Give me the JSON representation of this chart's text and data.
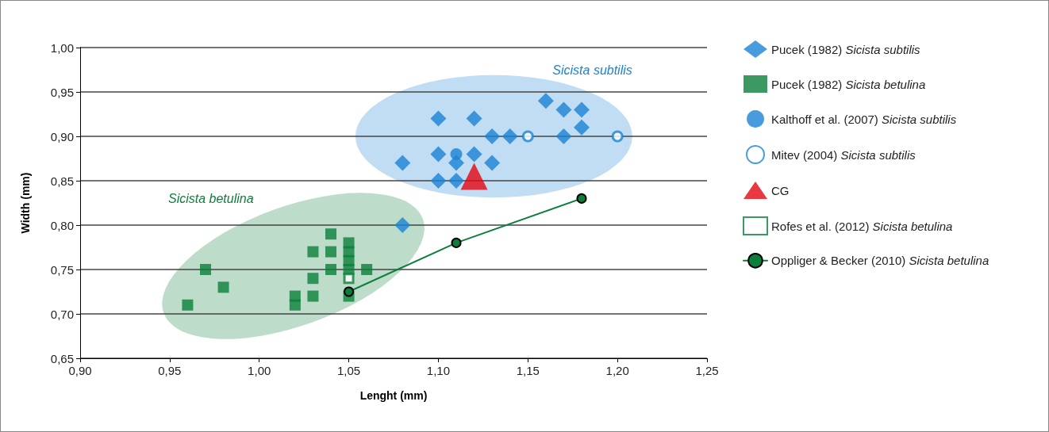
{
  "chart_data": {
    "type": "scatter",
    "xlabel": "Lenght (mm)",
    "ylabel": "Width (mm)",
    "xlim": [
      0.9,
      1.25
    ],
    "ylim": [
      0.65,
      1.0
    ],
    "xticks": [
      {
        "value": 0.9,
        "label": "0,90"
      },
      {
        "value": 0.95,
        "label": "0,95"
      },
      {
        "value": 1.0,
        "label": "1,00"
      },
      {
        "value": 1.05,
        "label": "1,05"
      },
      {
        "value": 1.1,
        "label": "1,10"
      },
      {
        "value": 1.15,
        "label": "1,15"
      },
      {
        "value": 1.2,
        "label": "1,20"
      },
      {
        "value": 1.25,
        "label": "1,25"
      }
    ],
    "yticks": [
      {
        "value": 0.65,
        "label": "0,65"
      },
      {
        "value": 0.7,
        "label": "0,70"
      },
      {
        "value": 0.75,
        "label": "0,75"
      },
      {
        "value": 0.8,
        "label": "0,80"
      },
      {
        "value": 0.85,
        "label": "0,85"
      },
      {
        "value": 0.9,
        "label": "0,90"
      },
      {
        "value": 0.95,
        "label": "0,95"
      },
      {
        "value": 1.0,
        "label": "1,00"
      }
    ],
    "grid": "y",
    "legend": "right",
    "annotations": [
      "Sicista subtilis",
      "Sicista betulina"
    ],
    "series": [
      {
        "name": "Pucek (1982) Sicista subtilis",
        "marker": "diamond",
        "color": "#1a83d4",
        "x": [
          1.1,
          1.12,
          1.13,
          1.14,
          1.16,
          1.17,
          1.18,
          1.18,
          1.17,
          1.1,
          1.12,
          1.08,
          1.11,
          1.13,
          1.1,
          1.11,
          1.08
        ],
        "values": [
          0.92,
          0.92,
          0.9,
          0.9,
          0.94,
          0.93,
          0.93,
          0.91,
          0.9,
          0.88,
          0.88,
          0.87,
          0.87,
          0.87,
          0.85,
          0.85,
          0.8
        ]
      },
      {
        "name": "Pucek (1982) Sicista betulina",
        "marker": "square",
        "color": "#0b7f3a",
        "x": [
          0.97,
          0.98,
          0.96,
          1.02,
          1.02,
          1.03,
          1.03,
          1.03,
          1.04,
          1.04,
          1.04,
          1.05,
          1.05,
          1.05,
          1.05,
          1.05,
          1.06
        ],
        "values": [
          0.75,
          0.73,
          0.71,
          0.72,
          0.71,
          0.77,
          0.74,
          0.72,
          0.79,
          0.77,
          0.75,
          0.78,
          0.77,
          0.76,
          0.75,
          0.72,
          0.75
        ]
      },
      {
        "name": "Kalthoff et al. (2007) Sicista subtilis",
        "marker": "circle",
        "color": "#1a83d4",
        "x": [
          1.11
        ],
        "values": [
          0.88
        ]
      },
      {
        "name": "Mitev (2004) Sicista subtilis",
        "marker": "circle",
        "color": "#1a83d4",
        "x": [
          1.15,
          1.2
        ],
        "values": [
          0.9,
          0.9
        ]
      },
      {
        "name": "CG",
        "marker": "triangle",
        "color": "#e30613",
        "x": [
          1.12
        ],
        "values": [
          0.855
        ]
      },
      {
        "name": "Rofes et al. (2012) Sicista betulina",
        "marker": "square",
        "color": "#0b7f3a",
        "x": [
          1.05
        ],
        "values": [
          0.74
        ]
      },
      {
        "name": "Oppliger & Becker (2010) Sicista betulina",
        "type": "line",
        "marker": "circle",
        "color": "#0b7f3a",
        "x": [
          1.05,
          1.11,
          1.18
        ],
        "values": [
          0.725,
          0.78,
          0.83
        ]
      }
    ]
  }
}
